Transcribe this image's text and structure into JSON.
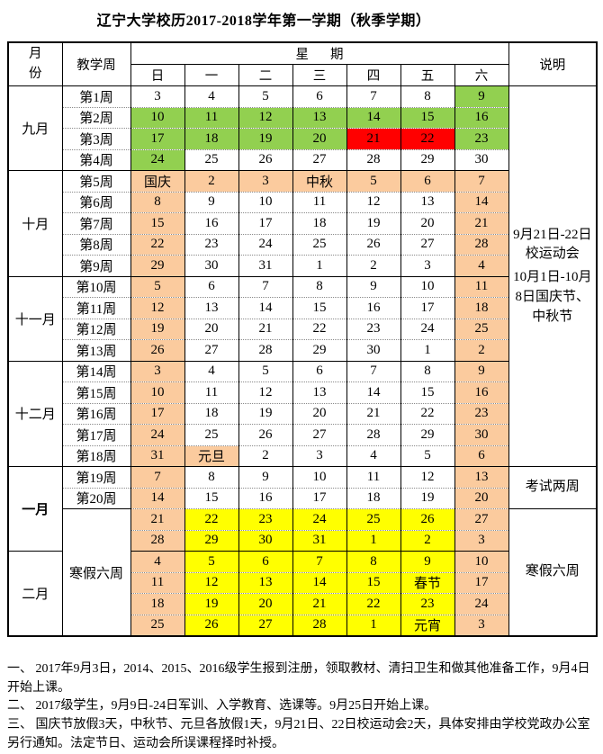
{
  "title": "辽宁大学校历2017-2018学年第一学期（秋季学期）",
  "header": {
    "month": "月份",
    "teaching_week": "教学周",
    "week": "星期",
    "days": [
      "日",
      "一",
      "二",
      "三",
      "四",
      "五",
      "六"
    ],
    "notes": "说明"
  },
  "colors": {
    "green": "#92D050",
    "red": "#FF0000",
    "orange": "#FBCB9E",
    "yellow": "#FFFF00",
    "white": "#FFFFFF"
  },
  "table": {
    "rows": [
      {
        "month": {
          "text": "九月",
          "rows": 4
        },
        "week": "第1周",
        "days": [
          "3",
          "4",
          "5",
          "6",
          "7",
          "8",
          "9"
        ],
        "colors": "wwwwwwg",
        "note": {
          "rows": 18,
          "lines": [
            "9月21日-22日校运动会",
            "10月1日-10月8日国庆节、中秋节"
          ]
        },
        "groupStart": true
      },
      {
        "week": "第2周",
        "days": [
          "10",
          "11",
          "12",
          "13",
          "14",
          "15",
          "16"
        ],
        "colors": "ggggggg"
      },
      {
        "week": "第3周",
        "days": [
          "17",
          "18",
          "19",
          "20",
          "21",
          "22",
          "23"
        ],
        "colors": "ggggrrg"
      },
      {
        "week": "第4周",
        "days": [
          "24",
          "25",
          "26",
          "27",
          "28",
          "29",
          "30"
        ],
        "colors": "gwwwwww"
      },
      {
        "month": {
          "text": "十月",
          "rows": 5
        },
        "week": "第5周",
        "days": [
          "国庆",
          "2",
          "3",
          "中秋",
          "5",
          "6",
          "7"
        ],
        "colors": "ooooooo",
        "groupStart": true
      },
      {
        "week": "第6周",
        "days": [
          "8",
          "9",
          "10",
          "11",
          "12",
          "13",
          "14"
        ],
        "colors": "owwwwwo"
      },
      {
        "week": "第7周",
        "days": [
          "15",
          "16",
          "17",
          "18",
          "19",
          "20",
          "21"
        ],
        "colors": "owwwwwo"
      },
      {
        "week": "第8周",
        "days": [
          "22",
          "23",
          "24",
          "25",
          "26",
          "27",
          "28"
        ],
        "colors": "owwwwwo"
      },
      {
        "week": "第9周",
        "days": [
          "29",
          "30",
          "31",
          "1",
          "2",
          "3",
          "4"
        ],
        "colors": "owwwwwo"
      },
      {
        "month": {
          "text": "十一月",
          "rows": 4
        },
        "week": "第10周",
        "days": [
          "5",
          "6",
          "7",
          "8",
          "9",
          "10",
          "11"
        ],
        "colors": "owwwwwo",
        "groupStart": true
      },
      {
        "week": "第11周",
        "days": [
          "12",
          "13",
          "14",
          "15",
          "16",
          "17",
          "18"
        ],
        "colors": "owwwwwo"
      },
      {
        "week": "第12周",
        "days": [
          "19",
          "20",
          "21",
          "22",
          "23",
          "24",
          "25"
        ],
        "colors": "owwwwwo"
      },
      {
        "week": "第13周",
        "days": [
          "26",
          "27",
          "28",
          "29",
          "30",
          "1",
          "2"
        ],
        "colors": "owwwwwo"
      },
      {
        "month": {
          "text": "十二月",
          "rows": 5
        },
        "week": "第14周",
        "days": [
          "3",
          "4",
          "5",
          "6",
          "7",
          "8",
          "9"
        ],
        "colors": "owwwwwo",
        "groupStart": true
      },
      {
        "week": "第15周",
        "days": [
          "10",
          "11",
          "12",
          "13",
          "14",
          "15",
          "16"
        ],
        "colors": "owwwwwo"
      },
      {
        "week": "第16周",
        "days": [
          "17",
          "18",
          "19",
          "20",
          "21",
          "22",
          "23"
        ],
        "colors": "owwwwwo"
      },
      {
        "week": "第17周",
        "days": [
          "24",
          "25",
          "26",
          "27",
          "28",
          "29",
          "30"
        ],
        "colors": "owwwwwo"
      },
      {
        "week": "第18周",
        "days": [
          "31",
          "元旦",
          "2",
          "3",
          "4",
          "5",
          "6"
        ],
        "colors": "oowwwwo"
      },
      {
        "month": {
          "text": "一月",
          "rows": 4,
          "bold": true
        },
        "week": "第19周",
        "days": [
          "7",
          "8",
          "9",
          "10",
          "11",
          "12",
          "13"
        ],
        "colors": "owwwwwo",
        "note": {
          "rows": 2,
          "lines": [
            "考试两周"
          ]
        },
        "groupStart": true
      },
      {
        "week": "第20周",
        "days": [
          "14",
          "15",
          "16",
          "17",
          "18",
          "19",
          "20"
        ],
        "colors": "owwwwwo"
      },
      {
        "week": {
          "text": "寒假六周",
          "rows": 6
        },
        "days": [
          "21",
          "22",
          "23",
          "24",
          "25",
          "26",
          "27"
        ],
        "colors": "oyyyyyo",
        "note": {
          "rows": 6,
          "lines": [
            "寒假六周"
          ]
        }
      },
      {
        "days": [
          "28",
          "29",
          "30",
          "31",
          "1",
          "2",
          "3"
        ],
        "colors": "oyyyyyo"
      },
      {
        "month": {
          "text": "二月",
          "rows": 4
        },
        "days": [
          "4",
          "5",
          "6",
          "7",
          "8",
          "9",
          "10"
        ],
        "colors": "oyyyyyo",
        "groupStart": true
      },
      {
        "days": [
          "11",
          "12",
          "13",
          "14",
          "15",
          "春节",
          "17"
        ],
        "colors": "oyyyyyo"
      },
      {
        "days": [
          "18",
          "19",
          "20",
          "21",
          "22",
          "23",
          "24"
        ],
        "colors": "oyyyyyo"
      },
      {
        "days": [
          "25",
          "26",
          "27",
          "28",
          "1",
          "元宵",
          "3"
        ],
        "colors": "oyyyyyo"
      }
    ]
  },
  "footnotes": [
    "一、 2017年9月3日，2014、2015、2016级学生报到注册，领取教材、清扫卫生和做其他准备工作，9月4日开始上课。",
    "二、 2017级学生，9月9日-24日军训、入学教育、选课等。9月25日开始上课。",
    "三、 国庆节放假3天，中秋节、元旦各放假1天，9月21日、22日校运动会2天，具体安排由学校党政办公室另行通知。法定节日、运动会所误课程择时补授。"
  ]
}
